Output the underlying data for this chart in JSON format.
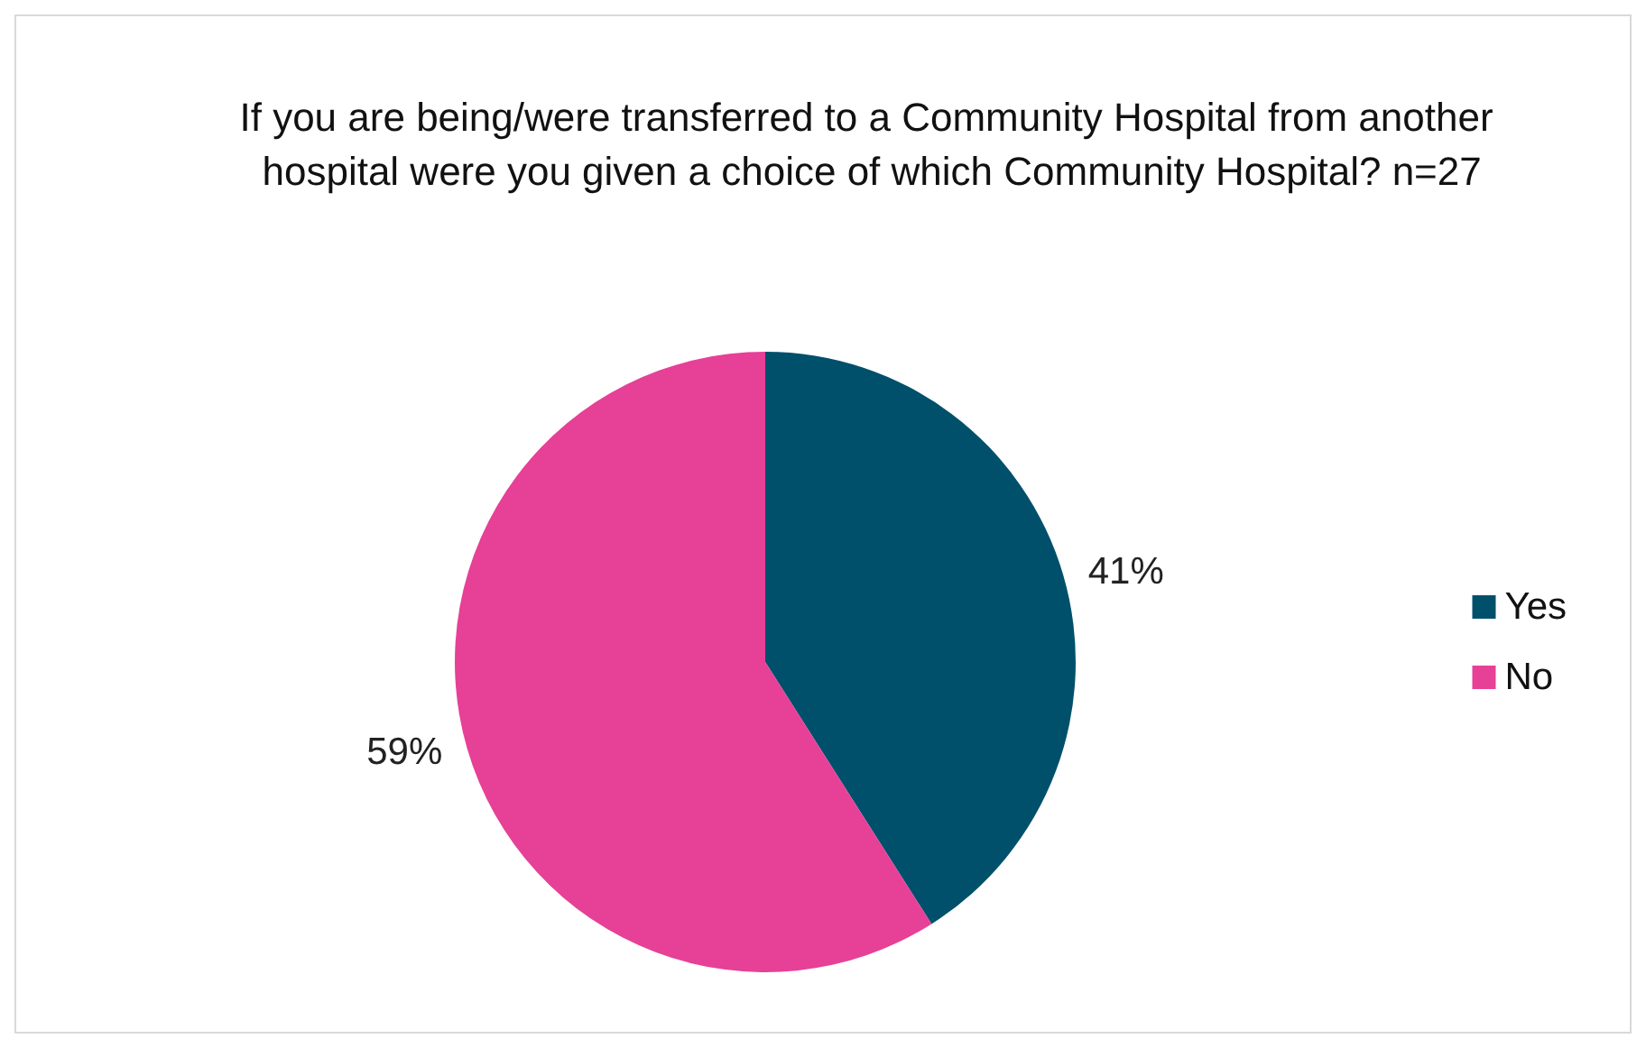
{
  "chart_data": {
    "type": "pie",
    "title": "If you are being/were transferred to a Community Hospital from another hospital were you given a choice of which Community Hospital? n=27",
    "categories": [
      "Yes",
      "No"
    ],
    "values": [
      41,
      59
    ],
    "value_labels": [
      "41%",
      "59%"
    ],
    "colors": [
      "#00506b",
      "#e64097"
    ],
    "legend": "right"
  }
}
